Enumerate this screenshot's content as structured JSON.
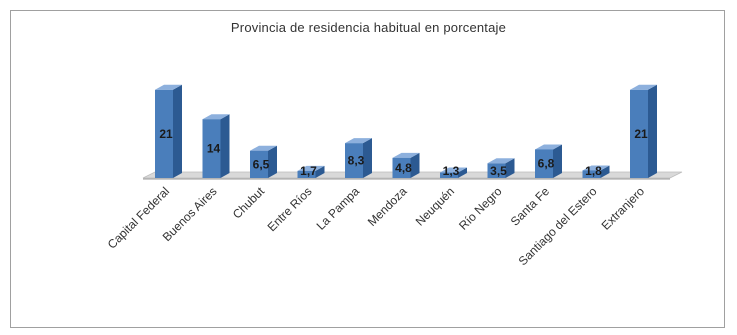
{
  "chart_data": {
    "type": "bar",
    "title": "Provincia de residencia habitual en porcentaje",
    "categories": [
      "Capital Federal",
      "Buenos Aires",
      "Chubut",
      "Entre Ríos",
      "La Pampa",
      "Mendoza",
      "Neuquén",
      "Río Negro",
      "Santa Fe",
      "Santiago del Estero",
      "Extranjero"
    ],
    "values": [
      21,
      14,
      6.5,
      1.7,
      8.3,
      4.8,
      1.3,
      3.5,
      6.8,
      1.8,
      21
    ],
    "value_labels": [
      "21",
      "14",
      "6,5",
      "1,7",
      "8,3",
      "4,8",
      "1,3",
      "3,5",
      "6,8",
      "1,8",
      "21"
    ],
    "ylim": [
      0,
      25
    ],
    "style": "3d-column",
    "legend": "none",
    "grid": false,
    "colors": {
      "bar_front": "#4a7ebb",
      "bar_side": "#2c5a92",
      "bar_top": "#8db0dd",
      "floor": "#d9d9d9"
    }
  }
}
